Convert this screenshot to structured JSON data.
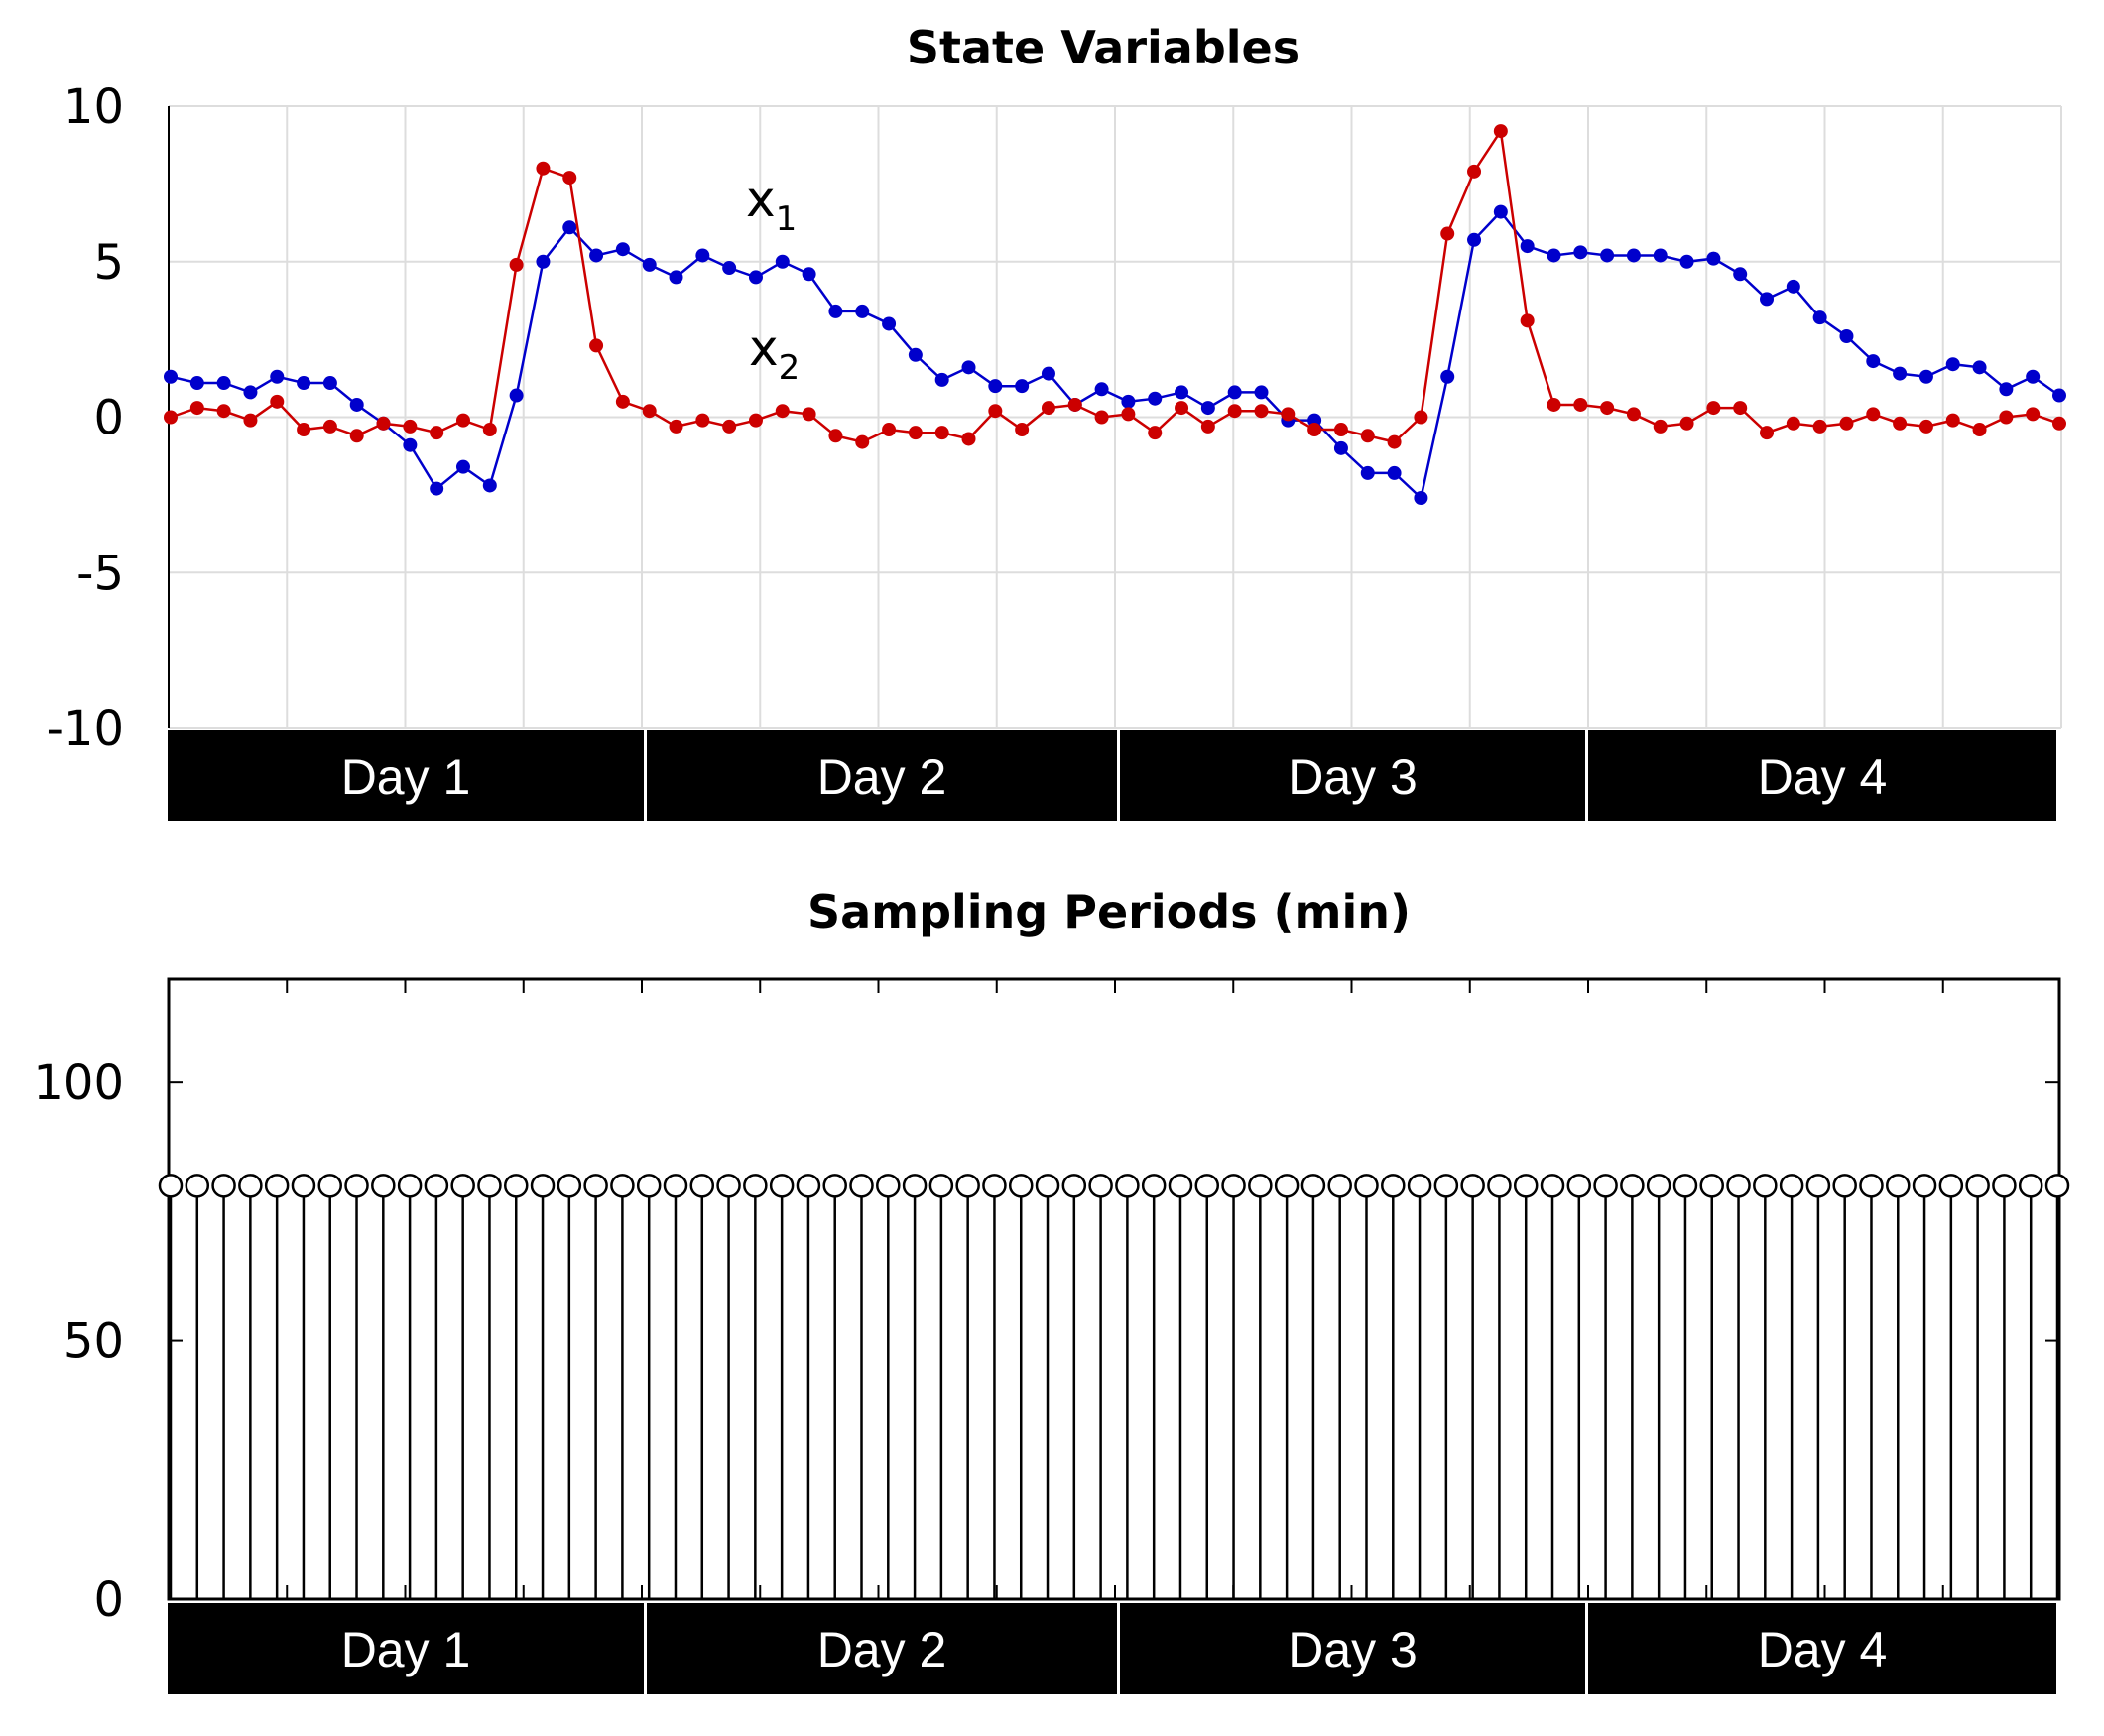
{
  "chart_data": [
    {
      "type": "line",
      "title": "State Variables",
      "ylim": [
        -10,
        10
      ],
      "yticks": [
        10,
        5,
        0,
        -5,
        -10
      ],
      "grid": true,
      "day_labels": [
        "Day 1",
        "Day 2",
        "Day 3",
        "Day 4"
      ],
      "x": [
        0,
        1,
        2,
        3,
        4,
        5,
        6,
        7,
        8,
        9,
        10,
        11,
        12,
        13,
        14,
        15,
        16,
        17,
        18,
        19,
        20,
        21,
        22,
        23,
        24,
        25,
        26,
        27,
        28,
        29,
        30,
        31,
        32,
        33,
        34,
        35,
        36,
        37,
        38,
        39,
        40,
        41,
        42,
        43,
        44,
        45,
        46,
        47,
        48,
        49,
        50,
        51,
        52,
        53,
        54,
        55,
        56,
        57,
        58,
        59,
        60,
        61,
        62,
        63,
        64,
        65,
        66,
        67,
        68,
        69,
        70,
        71
      ],
      "series": [
        {
          "name": "x",
          "subscript": "1",
          "color": "#0000cc",
          "values": [
            1.3,
            1.1,
            1.1,
            0.8,
            1.3,
            1.1,
            1.1,
            0.4,
            -0.2,
            -0.9,
            -2.3,
            -1.6,
            -2.2,
            0.7,
            5.0,
            6.1,
            5.2,
            5.4,
            4.9,
            4.5,
            5.2,
            4.8,
            4.5,
            5.0,
            4.6,
            3.4,
            3.4,
            3.0,
            2.0,
            1.2,
            1.6,
            1.0,
            1.0,
            1.4,
            0.4,
            0.9,
            0.5,
            0.6,
            0.8,
            0.3,
            0.8,
            0.8,
            -0.1,
            -0.1,
            -1.0,
            -1.8,
            -1.8,
            -2.6,
            1.3,
            5.7,
            6.6,
            5.5,
            5.2,
            5.3,
            5.2,
            5.2,
            5.2,
            5.0,
            5.1,
            4.6,
            3.8,
            4.2,
            3.2,
            2.6,
            1.8,
            1.4,
            1.3,
            1.7,
            1.6,
            0.9,
            1.3,
            0.7
          ]
        },
        {
          "name": "x",
          "subscript": "2",
          "color": "#cc0000",
          "values": [
            0.0,
            0.3,
            0.2,
            -0.1,
            0.5,
            -0.4,
            -0.3,
            -0.6,
            -0.2,
            -0.3,
            -0.5,
            -0.1,
            -0.4,
            4.9,
            8.0,
            7.7,
            2.3,
            0.5,
            0.2,
            -0.3,
            -0.1,
            -0.3,
            -0.1,
            0.2,
            0.1,
            -0.6,
            -0.8,
            -0.4,
            -0.5,
            -0.5,
            -0.7,
            0.2,
            -0.4,
            0.3,
            0.4,
            0.0,
            0.1,
            -0.5,
            0.3,
            -0.3,
            0.2,
            0.2,
            0.1,
            -0.4,
            -0.4,
            -0.6,
            -0.8,
            0.0,
            5.9,
            7.9,
            9.2,
            3.1,
            0.4,
            0.4,
            0.3,
            0.1,
            -0.3,
            -0.2,
            0.3,
            0.3,
            -0.5,
            -0.2,
            -0.3,
            -0.2,
            0.1,
            -0.2,
            -0.3,
            -0.1,
            -0.4,
            0.0,
            0.1,
            -0.2
          ]
        }
      ]
    },
    {
      "type": "stem",
      "title": "Sampling Periods (min)",
      "ylim": [
        0,
        120
      ],
      "yticks": [
        100,
        50,
        0
      ],
      "grid": false,
      "day_labels": [
        "Day 1",
        "Day 2",
        "Day 3",
        "Day 4"
      ],
      "value": 80,
      "count": 72
    }
  ]
}
